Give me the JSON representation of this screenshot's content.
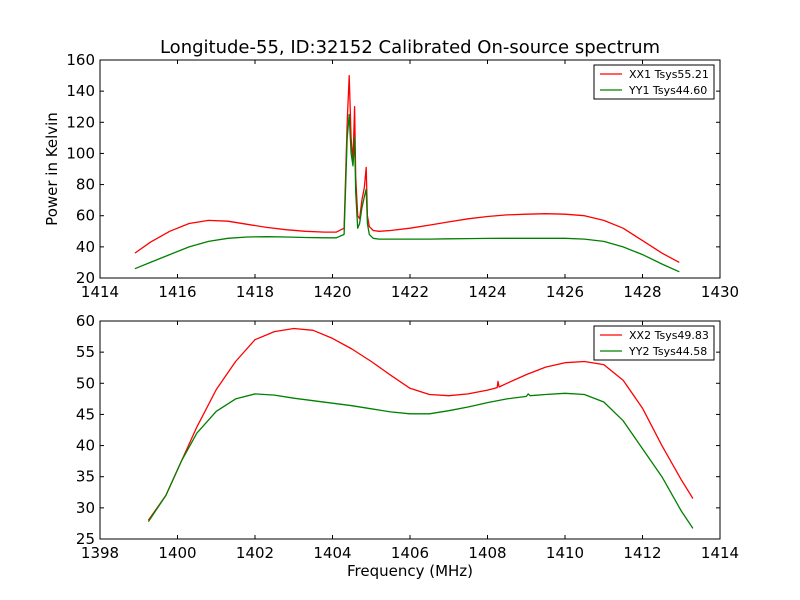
{
  "figure": {
    "title": "Longitude-55, ID:32152 Calibrated On-source spectrum"
  },
  "chart_data": [
    {
      "type": "line",
      "title": "Longitude-55, ID:32152 Calibrated On-source spectrum",
      "xlabel": "",
      "ylabel": "Power in Kelvin",
      "xlim": [
        1414,
        1430
      ],
      "ylim": [
        20,
        160
      ],
      "xticks": [
        1414,
        1416,
        1418,
        1420,
        1422,
        1424,
        1426,
        1428,
        1430
      ],
      "yticks": [
        20,
        40,
        60,
        80,
        100,
        120,
        140,
        160
      ],
      "grid": false,
      "legend": "top-right",
      "series": [
        {
          "name": "XX1 Tsys55.21",
          "color": "#ff0000",
          "x": [
            1414.9,
            1415.3,
            1415.8,
            1416.3,
            1416.8,
            1417.3,
            1417.8,
            1418.3,
            1418.8,
            1419.3,
            1419.8,
            1420.1,
            1420.3,
            1420.38,
            1420.43,
            1420.48,
            1420.53,
            1420.57,
            1420.6,
            1420.65,
            1420.7,
            1420.76,
            1420.82,
            1420.87,
            1420.9,
            1420.95,
            1421.05,
            1421.2,
            1421.5,
            1422.0,
            1422.5,
            1423.0,
            1423.5,
            1424.0,
            1424.5,
            1425.0,
            1425.5,
            1426.0,
            1426.5,
            1427.0,
            1427.5,
            1428.0,
            1428.5,
            1428.95
          ],
          "y": [
            36,
            43,
            50,
            55,
            57,
            56.5,
            54.5,
            52.5,
            51,
            50,
            49.5,
            49.5,
            52,
            120,
            150,
            110,
            95,
            130,
            85,
            60,
            58,
            70,
            78,
            91,
            60,
            53,
            50.5,
            50,
            50.5,
            52,
            54,
            56,
            58,
            59.5,
            60.5,
            61,
            61.3,
            61,
            60,
            57,
            52,
            44,
            36,
            30
          ]
        },
        {
          "name": "YY1 Tsys44.60",
          "color": "#008000",
          "x": [
            1414.9,
            1415.3,
            1415.8,
            1416.3,
            1416.8,
            1417.3,
            1417.8,
            1418.3,
            1418.8,
            1419.3,
            1419.8,
            1420.1,
            1420.3,
            1420.38,
            1420.43,
            1420.48,
            1420.53,
            1420.57,
            1420.6,
            1420.65,
            1420.7,
            1420.76,
            1420.82,
            1420.87,
            1420.9,
            1420.95,
            1421.05,
            1421.2,
            1421.5,
            1422.0,
            1422.5,
            1423.0,
            1423.5,
            1424.0,
            1424.5,
            1425.0,
            1425.5,
            1426.0,
            1426.5,
            1427.0,
            1427.5,
            1428.0,
            1428.5,
            1428.95
          ],
          "y": [
            26,
            30,
            35,
            40,
            43.5,
            45.5,
            46.3,
            46.5,
            46.3,
            46,
            45.8,
            45.8,
            48,
            110,
            125,
            100,
            92,
            110,
            75,
            52,
            55,
            65,
            72,
            77,
            55,
            48,
            45.5,
            45,
            45,
            45,
            45,
            45.2,
            45.3,
            45.4,
            45.5,
            45.5,
            45.5,
            45.5,
            45,
            43.5,
            40,
            35,
            29,
            24
          ]
        }
      ]
    },
    {
      "type": "line",
      "title": "",
      "xlabel": "Frequency (MHz)",
      "ylabel": "",
      "xlim": [
        1398,
        1414
      ],
      "ylim": [
        25,
        60
      ],
      "xticks": [
        1398,
        1400,
        1402,
        1404,
        1406,
        1408,
        1410,
        1412,
        1414
      ],
      "yticks": [
        25,
        30,
        35,
        40,
        45,
        50,
        55,
        60
      ],
      "grid": false,
      "legend": "top-right",
      "series": [
        {
          "name": "XX2 Tsys49.83",
          "color": "#ff0000",
          "x": [
            1399.25,
            1399.7,
            1400.1,
            1400.5,
            1401.0,
            1401.5,
            1402.0,
            1402.5,
            1403.0,
            1403.5,
            1404.0,
            1404.5,
            1405.0,
            1405.5,
            1406.0,
            1406.5,
            1407.0,
            1407.5,
            1408.0,
            1408.25,
            1408.27,
            1408.3,
            1408.5,
            1409.0,
            1409.5,
            1410.0,
            1410.5,
            1411.0,
            1411.5,
            1412.0,
            1412.5,
            1413.0,
            1413.3
          ],
          "y": [
            28,
            32,
            37.5,
            43,
            49,
            53.5,
            57,
            58.3,
            58.8,
            58.5,
            57.2,
            55.5,
            53.5,
            51.3,
            49.2,
            48.2,
            48,
            48.3,
            48.9,
            49.3,
            50.3,
            49.4,
            50,
            51.4,
            52.6,
            53.3,
            53.5,
            53,
            50.5,
            46,
            40,
            34.5,
            31.5
          ]
        },
        {
          "name": "YY2 Tsys44.58",
          "color": "#008000",
          "x": [
            1399.25,
            1399.7,
            1400.1,
            1400.5,
            1401.0,
            1401.5,
            1402.0,
            1402.5,
            1403.0,
            1403.5,
            1404.0,
            1404.5,
            1405.0,
            1405.5,
            1406.0,
            1406.5,
            1407.0,
            1407.5,
            1408.0,
            1408.5,
            1409.0,
            1409.05,
            1409.1,
            1409.5,
            1410.0,
            1410.5,
            1411.0,
            1411.5,
            1412.0,
            1412.5,
            1413.0,
            1413.3
          ],
          "y": [
            27.8,
            32,
            37.5,
            42,
            45.5,
            47.5,
            48.3,
            48.1,
            47.6,
            47.2,
            46.8,
            46.4,
            45.9,
            45.4,
            45.1,
            45.1,
            45.6,
            46.2,
            46.9,
            47.5,
            47.9,
            48.3,
            48,
            48.2,
            48.4,
            48.2,
            47,
            44,
            39.5,
            35,
            29.5,
            26.7
          ]
        }
      ]
    }
  ]
}
